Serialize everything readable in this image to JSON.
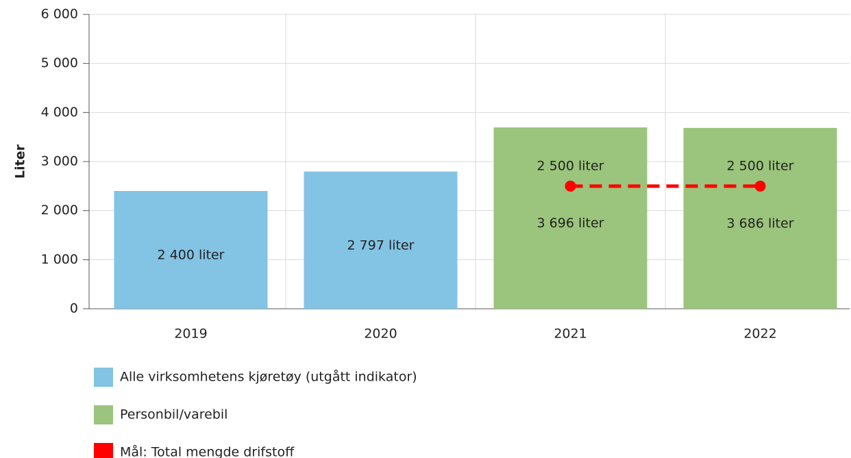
{
  "chart_data": {
    "type": "bar",
    "y_label": "Liter",
    "categories": [
      "2019",
      "2020",
      "2021",
      "2022"
    ],
    "series": [
      {
        "name": "Alle virksomhetens kjøretøy (utgått indikator)",
        "color": "#83c3e3",
        "values": [
          2400,
          2797,
          null,
          null
        ],
        "value_labels": [
          "2 400 liter",
          "2 797 liter",
          null,
          null
        ]
      },
      {
        "name": "Personbil/varebil",
        "color": "#9bc47c",
        "values": [
          null,
          null,
          3696,
          3686
        ],
        "value_labels": [
          null,
          null,
          "3 696 liter",
          "3 686 liter"
        ]
      },
      {
        "name": "Mål: Total mengde drifstoff",
        "color": "#ff0000",
        "type": "line",
        "dashed": true,
        "values": [
          null,
          null,
          2500,
          2500
        ],
        "value_labels": [
          null,
          null,
          "2 500 liter",
          "2 500 liter"
        ]
      }
    ],
    "ylim": [
      0,
      6000
    ],
    "yticks": [
      0,
      {
        "value": 1000,
        "label": "1 000"
      },
      {
        "value": 2000,
        "label": "2 000"
      },
      {
        "value": 3000,
        "label": "3 000"
      },
      {
        "value": 4000,
        "label": "4 000"
      },
      {
        "value": 5000,
        "label": "5 000"
      },
      {
        "value": 6000,
        "label": "6 000"
      }
    ],
    "grid": true,
    "legend": "bottom"
  }
}
